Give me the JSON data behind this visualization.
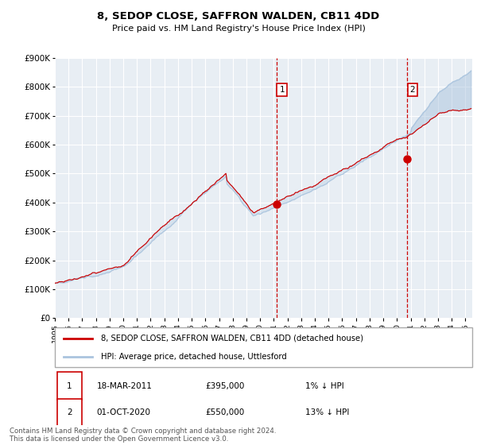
{
  "title_line1": "8, SEDOP CLOSE, SAFFRON WALDEN, CB11 4DD",
  "title_line2": "Price paid vs. HM Land Registry's House Price Index (HPI)",
  "ylim": [
    0,
    900000
  ],
  "xlim_start": 1995.0,
  "xlim_end": 2025.5,
  "hpi_color": "#aac4de",
  "price_color": "#cc0000",
  "marker_color": "#cc0000",
  "bg_color": "#ffffff",
  "plot_bg_color": "#e8eef4",
  "grid_color": "#ffffff",
  "sale1_x": 2011.21,
  "sale1_y": 395000,
  "sale2_x": 2020.75,
  "sale2_y": 550000,
  "dashed_line_color": "#cc0000",
  "legend_label_price": "8, SEDOP CLOSE, SAFFRON WALDEN, CB11 4DD (detached house)",
  "legend_label_hpi": "HPI: Average price, detached house, Uttlesford",
  "annotation1_label": "1",
  "annotation1_date": "18-MAR-2011",
  "annotation1_price": "£395,000",
  "annotation1_hpi": "1% ↓ HPI",
  "annotation2_label": "2",
  "annotation2_date": "01-OCT-2020",
  "annotation2_price": "£550,000",
  "annotation2_hpi": "13% ↓ HPI",
  "footer": "Contains HM Land Registry data © Crown copyright and database right 2024.\nThis data is licensed under the Open Government Licence v3.0.",
  "yticks": [
    0,
    100000,
    200000,
    300000,
    400000,
    500000,
    600000,
    700000,
    800000,
    900000
  ],
  "ytick_labels": [
    "£0",
    "£100K",
    "£200K",
    "£300K",
    "£400K",
    "£500K",
    "£600K",
    "£700K",
    "£800K",
    "£900K"
  ],
  "xticks": [
    1995,
    1996,
    1997,
    1998,
    1999,
    2000,
    2001,
    2002,
    2003,
    2004,
    2005,
    2006,
    2007,
    2008,
    2009,
    2010,
    2011,
    2012,
    2013,
    2014,
    2015,
    2016,
    2017,
    2018,
    2019,
    2020,
    2021,
    2022,
    2023,
    2024,
    2025
  ]
}
